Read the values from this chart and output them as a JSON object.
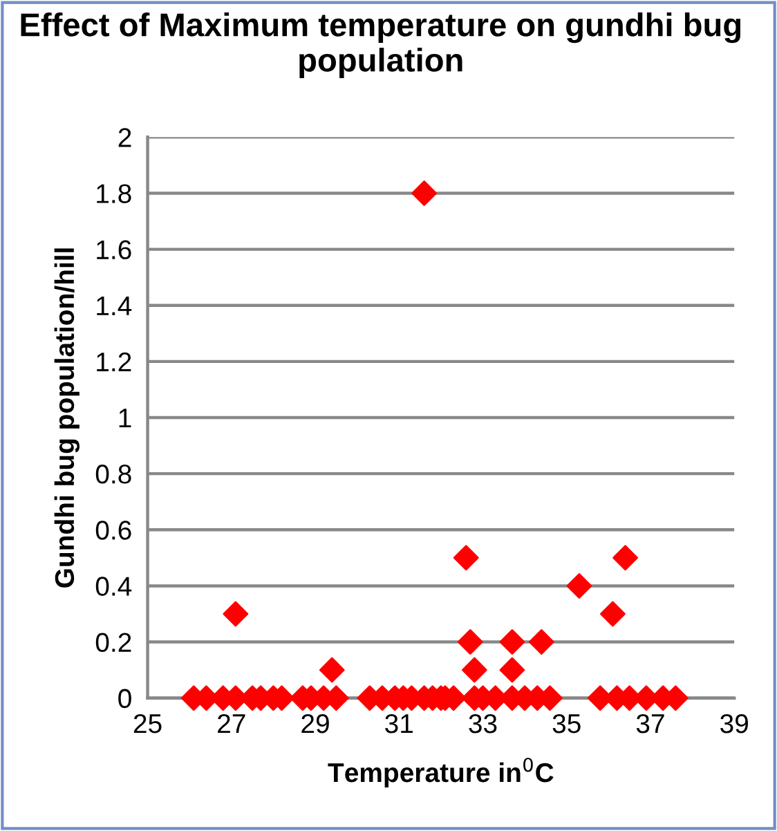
{
  "chart_data": {
    "type": "scatter",
    "title": "Effect of Maximum temperature on gundhi bug population",
    "xlabel": "Temperature in$^{0}$C",
    "ylabel": "Gundhi bug population/hill",
    "x": [
      27.1,
      29.4,
      31.6,
      32.6,
      32.7,
      32.8,
      33.7,
      33.7,
      34.4,
      35.3,
      36.1,
      36.4,
      26.1,
      26.4,
      26.8,
      27.1,
      27.5,
      27.7,
      28.0,
      28.2,
      28.7,
      28.9,
      29.2,
      29.5,
      30.3,
      30.6,
      30.9,
      31.1,
      31.3,
      31.6,
      31.8,
      32.0,
      32.1,
      32.3,
      32.8,
      33.0,
      33.3,
      33.7,
      34.0,
      34.3,
      34.6,
      35.8,
      36.2,
      36.5,
      36.9,
      37.3,
      37.6
    ],
    "series": [
      {
        "color": "#ff0000",
        "values": [
          0.3,
          0.1,
          1.8,
          0.5,
          0.2,
          0.1,
          0.2,
          0.1,
          0.2,
          0.4,
          0.3,
          0.5,
          0,
          0,
          0,
          0,
          0,
          0,
          0,
          0,
          0,
          0,
          0,
          0,
          0,
          0,
          0,
          0,
          0,
          0,
          0,
          0,
          0,
          0,
          0,
          0,
          0,
          0,
          0,
          0,
          0,
          0,
          0,
          0,
          0,
          0,
          0
        ]
      }
    ],
    "xlim": [
      25,
      39
    ],
    "xticks": [
      25,
      27,
      29,
      31,
      33,
      35,
      37,
      39
    ],
    "ylim": [
      0,
      2
    ],
    "yticks": [
      0,
      0.2,
      0.4,
      0.6,
      0.8,
      1,
      1.2,
      1.4,
      1.6,
      1.8,
      2
    ],
    "grid": "y",
    "marker": "diamond",
    "legend": false
  }
}
